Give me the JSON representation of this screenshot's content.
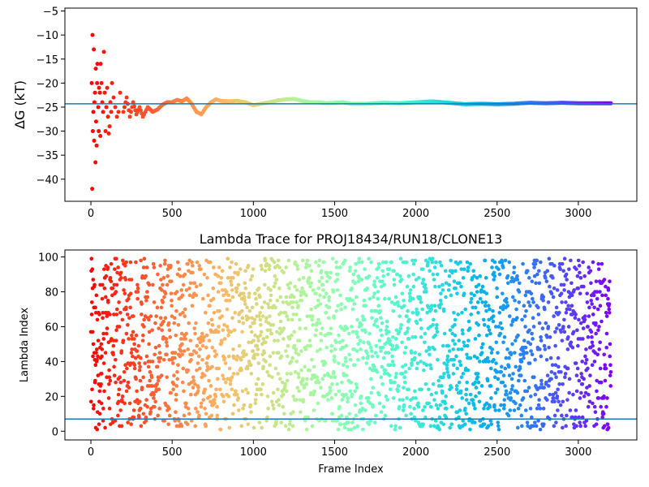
{
  "chart_data": [
    {
      "type": "scatter",
      "title": "",
      "xlabel": "",
      "ylabel": "ΔG (kT)",
      "xlim": [
        -160,
        3360
      ],
      "ylim": [
        -44.6,
        -4.4
      ],
      "xticks": [
        0,
        500,
        1000,
        1500,
        2000,
        2500,
        3000
      ],
      "yticks": [
        -40,
        -35,
        -30,
        -25,
        -20,
        -15,
        -10,
        -5
      ],
      "colormap": "rainbow",
      "color_by": "frame index (red at 0, violet at 3200)",
      "hline": {
        "y": -24.3,
        "color": "#1f77b4"
      },
      "series": [
        {
          "points": [
            [
              5,
              -20
            ],
            [
              8,
              -42
            ],
            [
              10,
              -10
            ],
            [
              12,
              -30
            ],
            [
              15,
              -26
            ],
            [
              18,
              -13
            ],
            [
              20,
              -32
            ],
            [
              22,
              -24
            ],
            [
              25,
              -22
            ],
            [
              28,
              -36.5
            ],
            [
              30,
              -17
            ],
            [
              32,
              -28
            ],
            [
              35,
              -33
            ],
            [
              38,
              -20
            ],
            [
              40,
              -16
            ],
            [
              45,
              -25
            ],
            [
              48,
              -30
            ],
            [
              50,
              -21
            ],
            [
              55,
              -22
            ],
            [
              58,
              -31
            ],
            [
              60,
              -16
            ],
            [
              65,
              -20
            ],
            [
              70,
              -24
            ],
            [
              75,
              -26
            ],
            [
              80,
              -13.5
            ],
            [
              85,
              -22
            ],
            [
              90,
              -30
            ],
            [
              95,
              -25
            ],
            [
              100,
              -21
            ],
            [
              105,
              -27
            ],
            [
              110,
              -30.5
            ],
            [
              115,
              -29
            ],
            [
              120,
              -24
            ],
            [
              125,
              -26
            ],
            [
              130,
              -20
            ],
            [
              140,
              -23
            ],
            [
              150,
              -25
            ],
            [
              160,
              -27
            ],
            [
              170,
              -26
            ],
            [
              180,
              -22
            ],
            [
              200,
              -26
            ],
            [
              220,
              -23
            ],
            [
              240,
              -27
            ],
            [
              260,
              -24
            ],
            [
              280,
              -26.5
            ],
            [
              300,
              -25
            ],
            [
              320,
              -27
            ],
            [
              350,
              -25
            ],
            [
              380,
              -26
            ],
            [
              410,
              -25.5
            ],
            [
              440,
              -24.5
            ],
            [
              470,
              -24
            ],
            [
              500,
              -24
            ],
            [
              530,
              -23.5
            ],
            [
              560,
              -23.8
            ],
            [
              590,
              -23.2
            ],
            [
              620,
              -24.3
            ],
            [
              650,
              -26
            ],
            [
              680,
              -26.5
            ],
            [
              710,
              -25
            ],
            [
              740,
              -24
            ],
            [
              770,
              -23.4
            ],
            [
              800,
              -23.7
            ],
            [
              850,
              -23.8
            ],
            [
              900,
              -23.7
            ],
            [
              950,
              -24
            ],
            [
              1000,
              -24.6
            ],
            [
              1050,
              -24.3
            ],
            [
              1100,
              -24
            ],
            [
              1150,
              -23.6
            ],
            [
              1200,
              -23.4
            ],
            [
              1250,
              -23.3
            ],
            [
              1300,
              -23.7
            ],
            [
              1350,
              -24
            ],
            [
              1400,
              -24
            ],
            [
              1450,
              -24.2
            ],
            [
              1500,
              -24.1
            ],
            [
              1550,
              -24
            ],
            [
              1600,
              -24.3
            ],
            [
              1700,
              -24.3
            ],
            [
              1800,
              -24.1
            ],
            [
              1900,
              -24.2
            ],
            [
              2000,
              -24
            ],
            [
              2100,
              -23.8
            ],
            [
              2200,
              -24.1
            ],
            [
              2300,
              -24.4
            ],
            [
              2400,
              -24.3
            ],
            [
              2500,
              -24.4
            ],
            [
              2600,
              -24.3
            ],
            [
              2700,
              -24.1
            ],
            [
              2800,
              -24.2
            ],
            [
              2900,
              -24.1
            ],
            [
              3000,
              -24.2
            ],
            [
              3100,
              -24.2
            ],
            [
              3200,
              -24.2
            ]
          ]
        }
      ]
    },
    {
      "type": "scatter",
      "title": "Lambda Trace for PROJ18434/RUN18/CLONE13",
      "xlabel": "Frame Index",
      "ylabel": "Lambda Index",
      "xlim": [
        -160,
        3360
      ],
      "ylim": [
        -5,
        104
      ],
      "xticks": [
        0,
        500,
        1000,
        1500,
        2000,
        2500,
        3000
      ],
      "yticks": [
        0,
        20,
        40,
        60,
        80,
        100
      ],
      "colormap": "rainbow",
      "color_by": "frame index (red at 0, violet at 3200)",
      "hline": {
        "y": 7,
        "color": "#1f77b4"
      },
      "series": [
        {
          "points_sampled": "uniformly scattered lambda values 1-99 for frame indices 0-3200",
          "x_range": [
            0,
            3200
          ],
          "y_range": [
            1,
            99
          ]
        }
      ]
    }
  ]
}
